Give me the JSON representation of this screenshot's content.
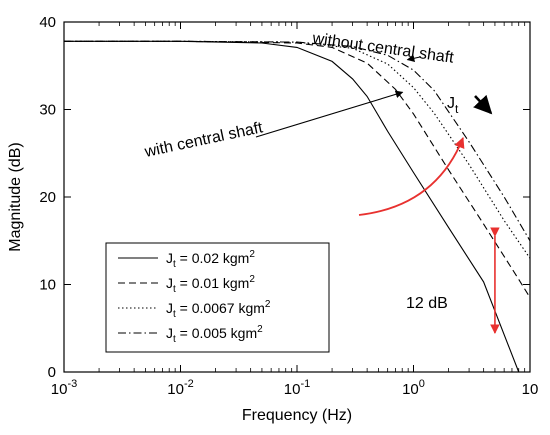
{
  "chart_data": {
    "type": "line",
    "xlabel": "Frequency  (Hz)",
    "ylabel": "Magnitude (dB)",
    "xscale": "log",
    "xlim": [
      0.001,
      10
    ],
    "ylim": [
      0,
      40
    ],
    "x_ticks": [
      {
        "value": 0.001,
        "base": "10",
        "exp": "-3"
      },
      {
        "value": 0.01,
        "base": "10",
        "exp": "-2"
      },
      {
        "value": 0.1,
        "base": "10",
        "exp": "-1"
      },
      {
        "value": 1,
        "base": "10",
        "exp": "0"
      },
      {
        "value": 10,
        "base": "10",
        "exp": ""
      }
    ],
    "y_ticks": [
      0,
      10,
      20,
      30,
      40
    ],
    "grid": false,
    "legend": {
      "placement": "bottom-left",
      "jt_symbol": "J",
      "jt_sub": "t",
      "unit": "kgm",
      "unit_sup": "2"
    },
    "series": [
      {
        "name": "J_t = 0.02 kgm^2",
        "value_text": " = 0.02 ",
        "style": "solid",
        "x": [
          0.001,
          0.01,
          0.05,
          0.1,
          0.2,
          0.3,
          0.4,
          0.6,
          1,
          2,
          4,
          8
        ],
        "y": [
          37.8,
          37.8,
          37.6,
          37.1,
          35.5,
          33.5,
          31.5,
          27.5,
          22.8,
          16.5,
          10.3,
          0
        ]
      },
      {
        "name": "J_t = 0.01 kgm^2",
        "value_text": " = 0.01 ",
        "style": "dashed",
        "x": [
          0.001,
          0.01,
          0.1,
          0.2,
          0.4,
          0.7,
          1,
          2,
          4,
          8,
          10
        ],
        "y": [
          37.8,
          37.8,
          37.6,
          37.1,
          35.3,
          32.3,
          29.5,
          23.1,
          16.9,
          10.6,
          8.5
        ]
      },
      {
        "name": "J_t = 0.0067 kgm^2",
        "value_text": " = 0.0067 ",
        "style": "dotted",
        "x": [
          0.001,
          0.01,
          0.1,
          0.3,
          0.6,
          1,
          1.5,
          3,
          6,
          10
        ],
        "y": [
          37.8,
          37.8,
          37.7,
          37.0,
          35.2,
          32.5,
          29.6,
          23.7,
          17.3,
          13.0
        ]
      },
      {
        "name": "J_t = 0.005 kgm^2",
        "value_text": " = 0.005 ",
        "style": "dashdot",
        "x": [
          0.001,
          0.01,
          0.1,
          0.3,
          0.6,
          1,
          1.5,
          3,
          6,
          10
        ],
        "y": [
          37.8,
          37.8,
          37.7,
          37.2,
          36.2,
          34.5,
          32.2,
          26.3,
          20.0,
          15.0
        ]
      }
    ],
    "annotations": {
      "with_shaft": "with central shaft",
      "without_shaft": "without central shaft",
      "jt_label": "J",
      "jt_sub": "t",
      "db_label": "12 dB"
    },
    "annotation_points": {
      "with_shaft_target": {
        "x": 0.3,
        "y": 33
      },
      "without_shaft_target": {
        "x": 0.7,
        "y": 35
      },
      "db_x": 5,
      "db_range": [
        4,
        16
      ]
    },
    "colors": {
      "axis": "#000000",
      "arrow_red": "#e8312f",
      "lines": "#000000"
    }
  }
}
